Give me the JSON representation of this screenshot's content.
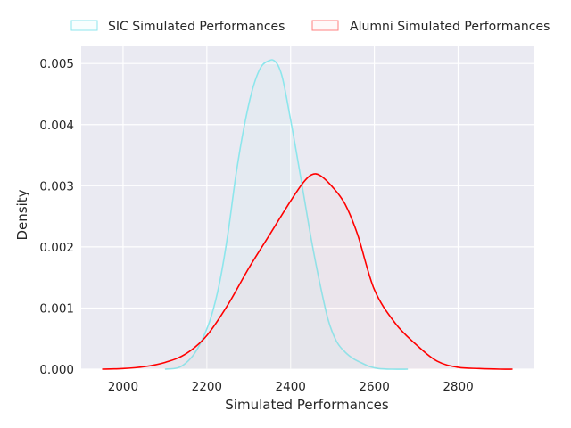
{
  "chart_data": {
    "type": "area",
    "xlabel": "Simulated Performances",
    "ylabel": "Density",
    "xlim": [
      1900,
      2980
    ],
    "ylim": [
      0,
      0.00528
    ],
    "x_ticks": [
      2000,
      2200,
      2400,
      2600,
      2800
    ],
    "x_tick_labels": [
      "2000",
      "2200",
      "2400",
      "2600",
      "2800"
    ],
    "y_ticks": [
      0,
      0.001,
      0.002,
      0.003,
      0.004,
      0.005
    ],
    "y_tick_labels": [
      "0.000",
      "0.001",
      "0.002",
      "0.003",
      "0.004",
      "0.005"
    ],
    "grid": true,
    "legend_position": "top",
    "colors": {
      "background": "#eaeaf2",
      "grid": "#ffffff",
      "sic": "#8ce6ec",
      "sic_fill": "rgba(140,230,236,0.06)",
      "alumni": "#ff0000",
      "alumni_fill": "rgba(255,128,128,0.05)",
      "alumni_legend_edge": "#ff8080",
      "text": "#262626"
    },
    "series": [
      {
        "name": "SIC Simulated Performances",
        "color": "#8ce6ec",
        "x": [
          2100,
          2130,
          2150,
          2170,
          2190,
          2210,
          2230,
          2250,
          2270,
          2290,
          2310,
          2330,
          2350,
          2360,
          2370,
          2380,
          2390,
          2410,
          2430,
          2450,
          2470,
          2490,
          2510,
          2530,
          2550,
          2570,
          2590,
          2610,
          2640,
          2680
        ],
        "values": [
          0.0,
          2e-05,
          0.0001,
          0.00025,
          0.0005,
          0.00085,
          0.0014,
          0.0022,
          0.0032,
          0.004,
          0.0046,
          0.00495,
          0.00505,
          0.00505,
          0.00497,
          0.00478,
          0.00445,
          0.0037,
          0.0029,
          0.0021,
          0.0014,
          0.0008,
          0.00045,
          0.00028,
          0.00017,
          0.0001,
          4e-05,
          1e-05,
          0.0,
          0.0
        ]
      },
      {
        "name": "Alumni Simulated Performances",
        "color": "#ff0000",
        "x": [
          1950,
          2000,
          2050,
          2100,
          2150,
          2200,
          2250,
          2300,
          2350,
          2400,
          2430,
          2450,
          2470,
          2500,
          2530,
          2560,
          2600,
          2650,
          2700,
          2750,
          2800,
          2850,
          2900,
          2930
        ],
        "values": [
          0.0,
          1e-05,
          4e-05,
          0.00011,
          0.00025,
          0.00055,
          0.00105,
          0.00165,
          0.0022,
          0.00275,
          0.00305,
          0.00318,
          0.00317,
          0.00298,
          0.0027,
          0.0022,
          0.0013,
          0.00075,
          0.0004,
          0.00013,
          3e-05,
          1e-05,
          0.0,
          0.0
        ]
      }
    ]
  }
}
